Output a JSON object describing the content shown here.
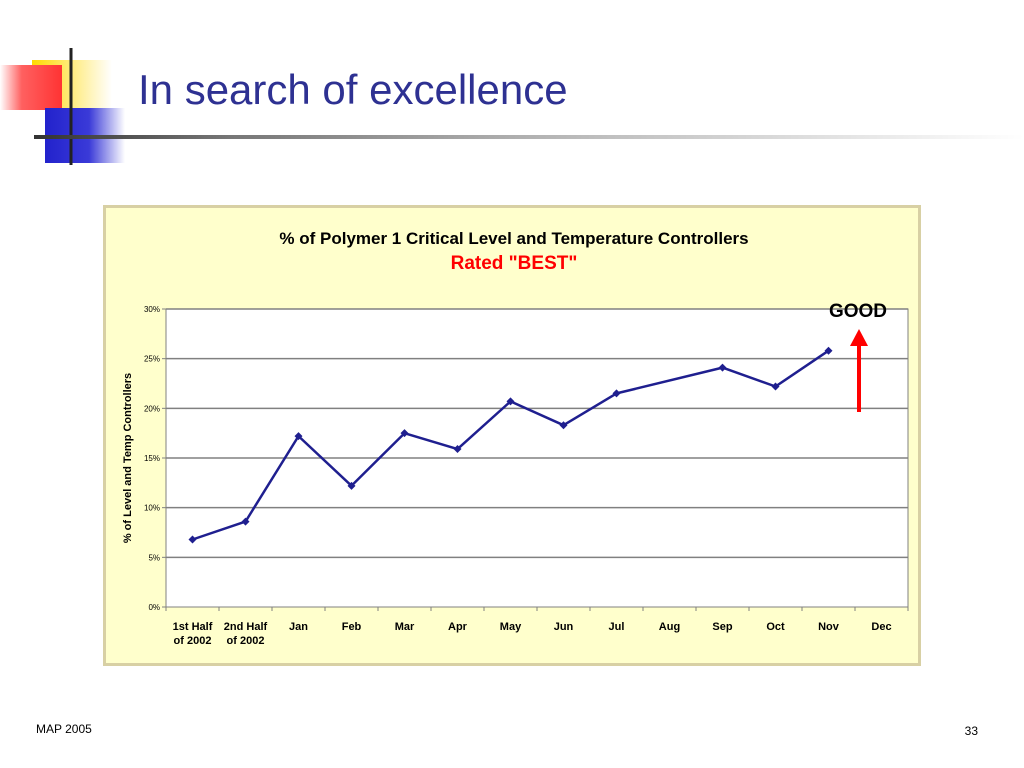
{
  "slide": {
    "title": "In search of excellence",
    "footer_left": "MAP 2005",
    "page_number": "33"
  },
  "colors": {
    "title": "#2e3192",
    "line": "#1f1f8f",
    "arrow": "#ff0000",
    "chart_background": "#ffffcc",
    "plot_background": "#ffffff"
  },
  "chart_data": {
    "type": "line",
    "title": "% of Polymer 1 Critical Level and Temperature Controllers",
    "subtitle": "Rated \"BEST\"",
    "ylabel": "% of Level and Temp Controllers",
    "xlabel": "",
    "ylim": [
      0,
      0.3
    ],
    "yticks": [
      0,
      0.05,
      0.1,
      0.15,
      0.2,
      0.25,
      0.3
    ],
    "ytick_labels": [
      "0%",
      "5%",
      "10%",
      "15%",
      "20%",
      "25%",
      "30%"
    ],
    "grid": true,
    "categories": [
      [
        "1st Half",
        "of 2002"
      ],
      [
        "2nd Half",
        "of 2002"
      ],
      [
        "Jan"
      ],
      [
        "Feb"
      ],
      [
        "Mar"
      ],
      [
        "Apr"
      ],
      [
        "May"
      ],
      [
        "Jun"
      ],
      [
        "Jul"
      ],
      [
        "Aug"
      ],
      [
        "Sep"
      ],
      [
        "Oct"
      ],
      [
        "Nov"
      ],
      [
        "Dec"
      ]
    ],
    "series": [
      {
        "points": [
          [
            0,
            0.068
          ],
          [
            1,
            0.086
          ],
          [
            2,
            0.172
          ],
          [
            3,
            0.122
          ],
          [
            4,
            0.175
          ],
          [
            5,
            0.159
          ],
          [
            6,
            0.207
          ],
          [
            7,
            0.183
          ],
          [
            8,
            0.215
          ],
          [
            10,
            0.241
          ],
          [
            11,
            0.222
          ],
          [
            12,
            0.258
          ]
        ]
      }
    ],
    "annotation": {
      "text": "GOOD",
      "arrow_direction": "up"
    }
  }
}
